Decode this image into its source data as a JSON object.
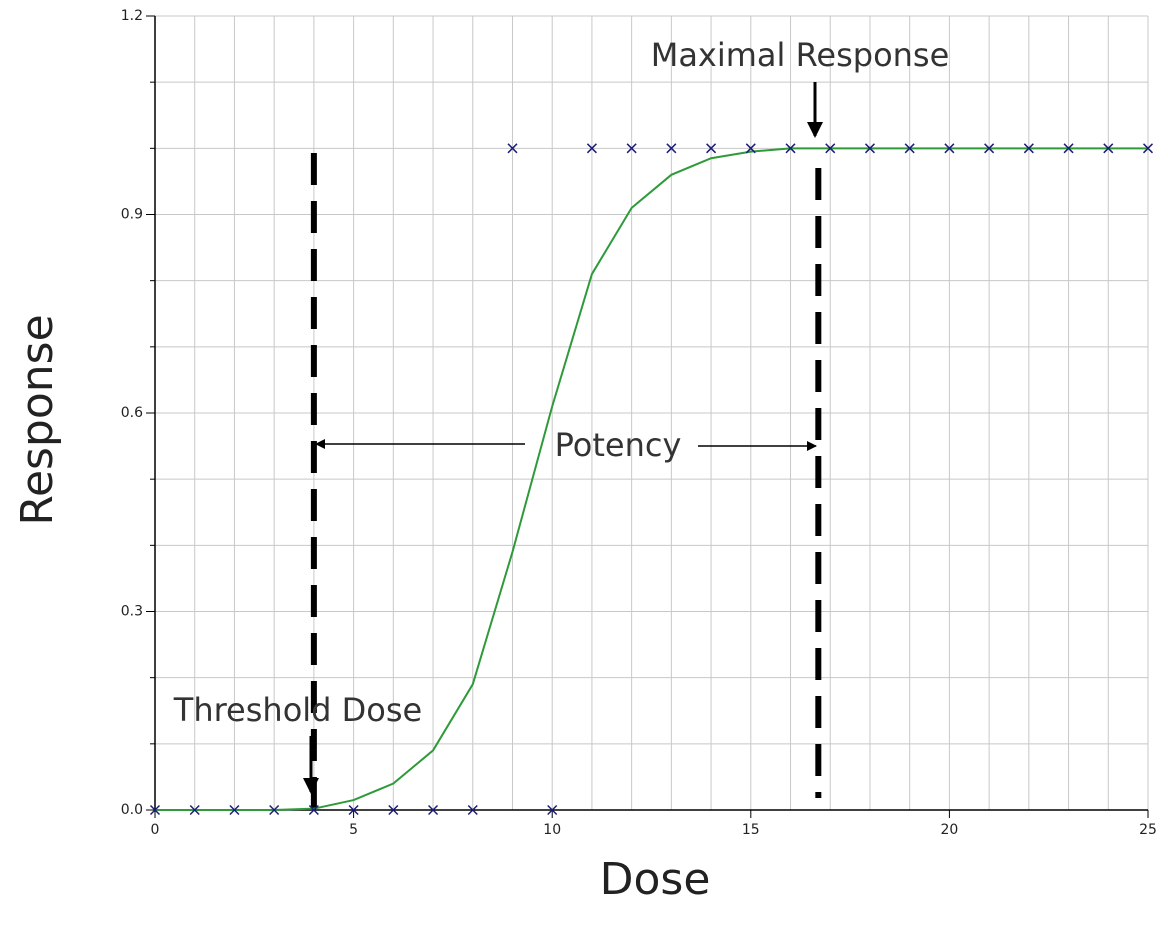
{
  "chart_data": {
    "type": "scatter",
    "x_label": "Dose",
    "y_label": "Response",
    "xlim": [
      0,
      25
    ],
    "ylim": [
      0,
      1.2
    ],
    "xticks": [
      0,
      5,
      10,
      15,
      20,
      25
    ],
    "yticks": [
      {
        "value": 0,
        "label": "0.0"
      },
      0.3,
      0.6,
      0.9,
      1.2
    ],
    "xgrid": [
      0,
      1,
      2,
      3,
      4,
      5,
      6,
      7,
      8,
      9,
      10,
      11,
      12,
      13,
      14,
      15,
      16,
      17,
      18,
      19,
      20,
      21,
      22,
      23,
      24,
      25
    ],
    "ygrid": [
      0,
      0.1,
      0.2,
      0.3,
      0.4,
      0.5,
      0.6,
      0.7,
      0.8,
      0.9,
      1.0,
      1.1,
      1.2
    ],
    "grid": true,
    "points": {
      "color": "#1c1c7a",
      "x": [
        0,
        1,
        2,
        3,
        4,
        5,
        6,
        7,
        8,
        10,
        9,
        11,
        12,
        13,
        14,
        15,
        16,
        17,
        18,
        19,
        20,
        21,
        22,
        23,
        24,
        25
      ],
      "y": [
        0,
        0,
        0,
        0,
        0,
        0,
        0,
        0,
        0,
        0,
        1.0,
        1.0,
        1.0,
        1.0,
        1.0,
        1.0,
        1.0,
        1.0,
        1.0,
        1.0,
        1.0,
        1.0,
        1.0,
        1.0,
        1.0,
        1.0
      ]
    },
    "curve": {
      "color": "#2e9a3a",
      "x": [
        0,
        1,
        2,
        3,
        4,
        5,
        6,
        7,
        8,
        9,
        10,
        11,
        12,
        13,
        14,
        15,
        16,
        17,
        18,
        19,
        20,
        21,
        22,
        23,
        24,
        25
      ],
      "y": [
        0,
        0,
        0,
        0,
        0.002,
        0.015,
        0.04,
        0.09,
        0.19,
        0.39,
        0.61,
        0.81,
        0.91,
        0.96,
        0.985,
        0.995,
        1.0,
        1.0,
        1.0,
        1.0,
        1.0,
        1.0,
        1.0,
        1.0,
        1.0,
        1.0
      ]
    },
    "reference_lines": [
      {
        "x": 4
      },
      {
        "x": 16.7
      }
    ],
    "annotations": [
      "Maximal Response",
      "Potency",
      "Threshold Dose"
    ]
  }
}
